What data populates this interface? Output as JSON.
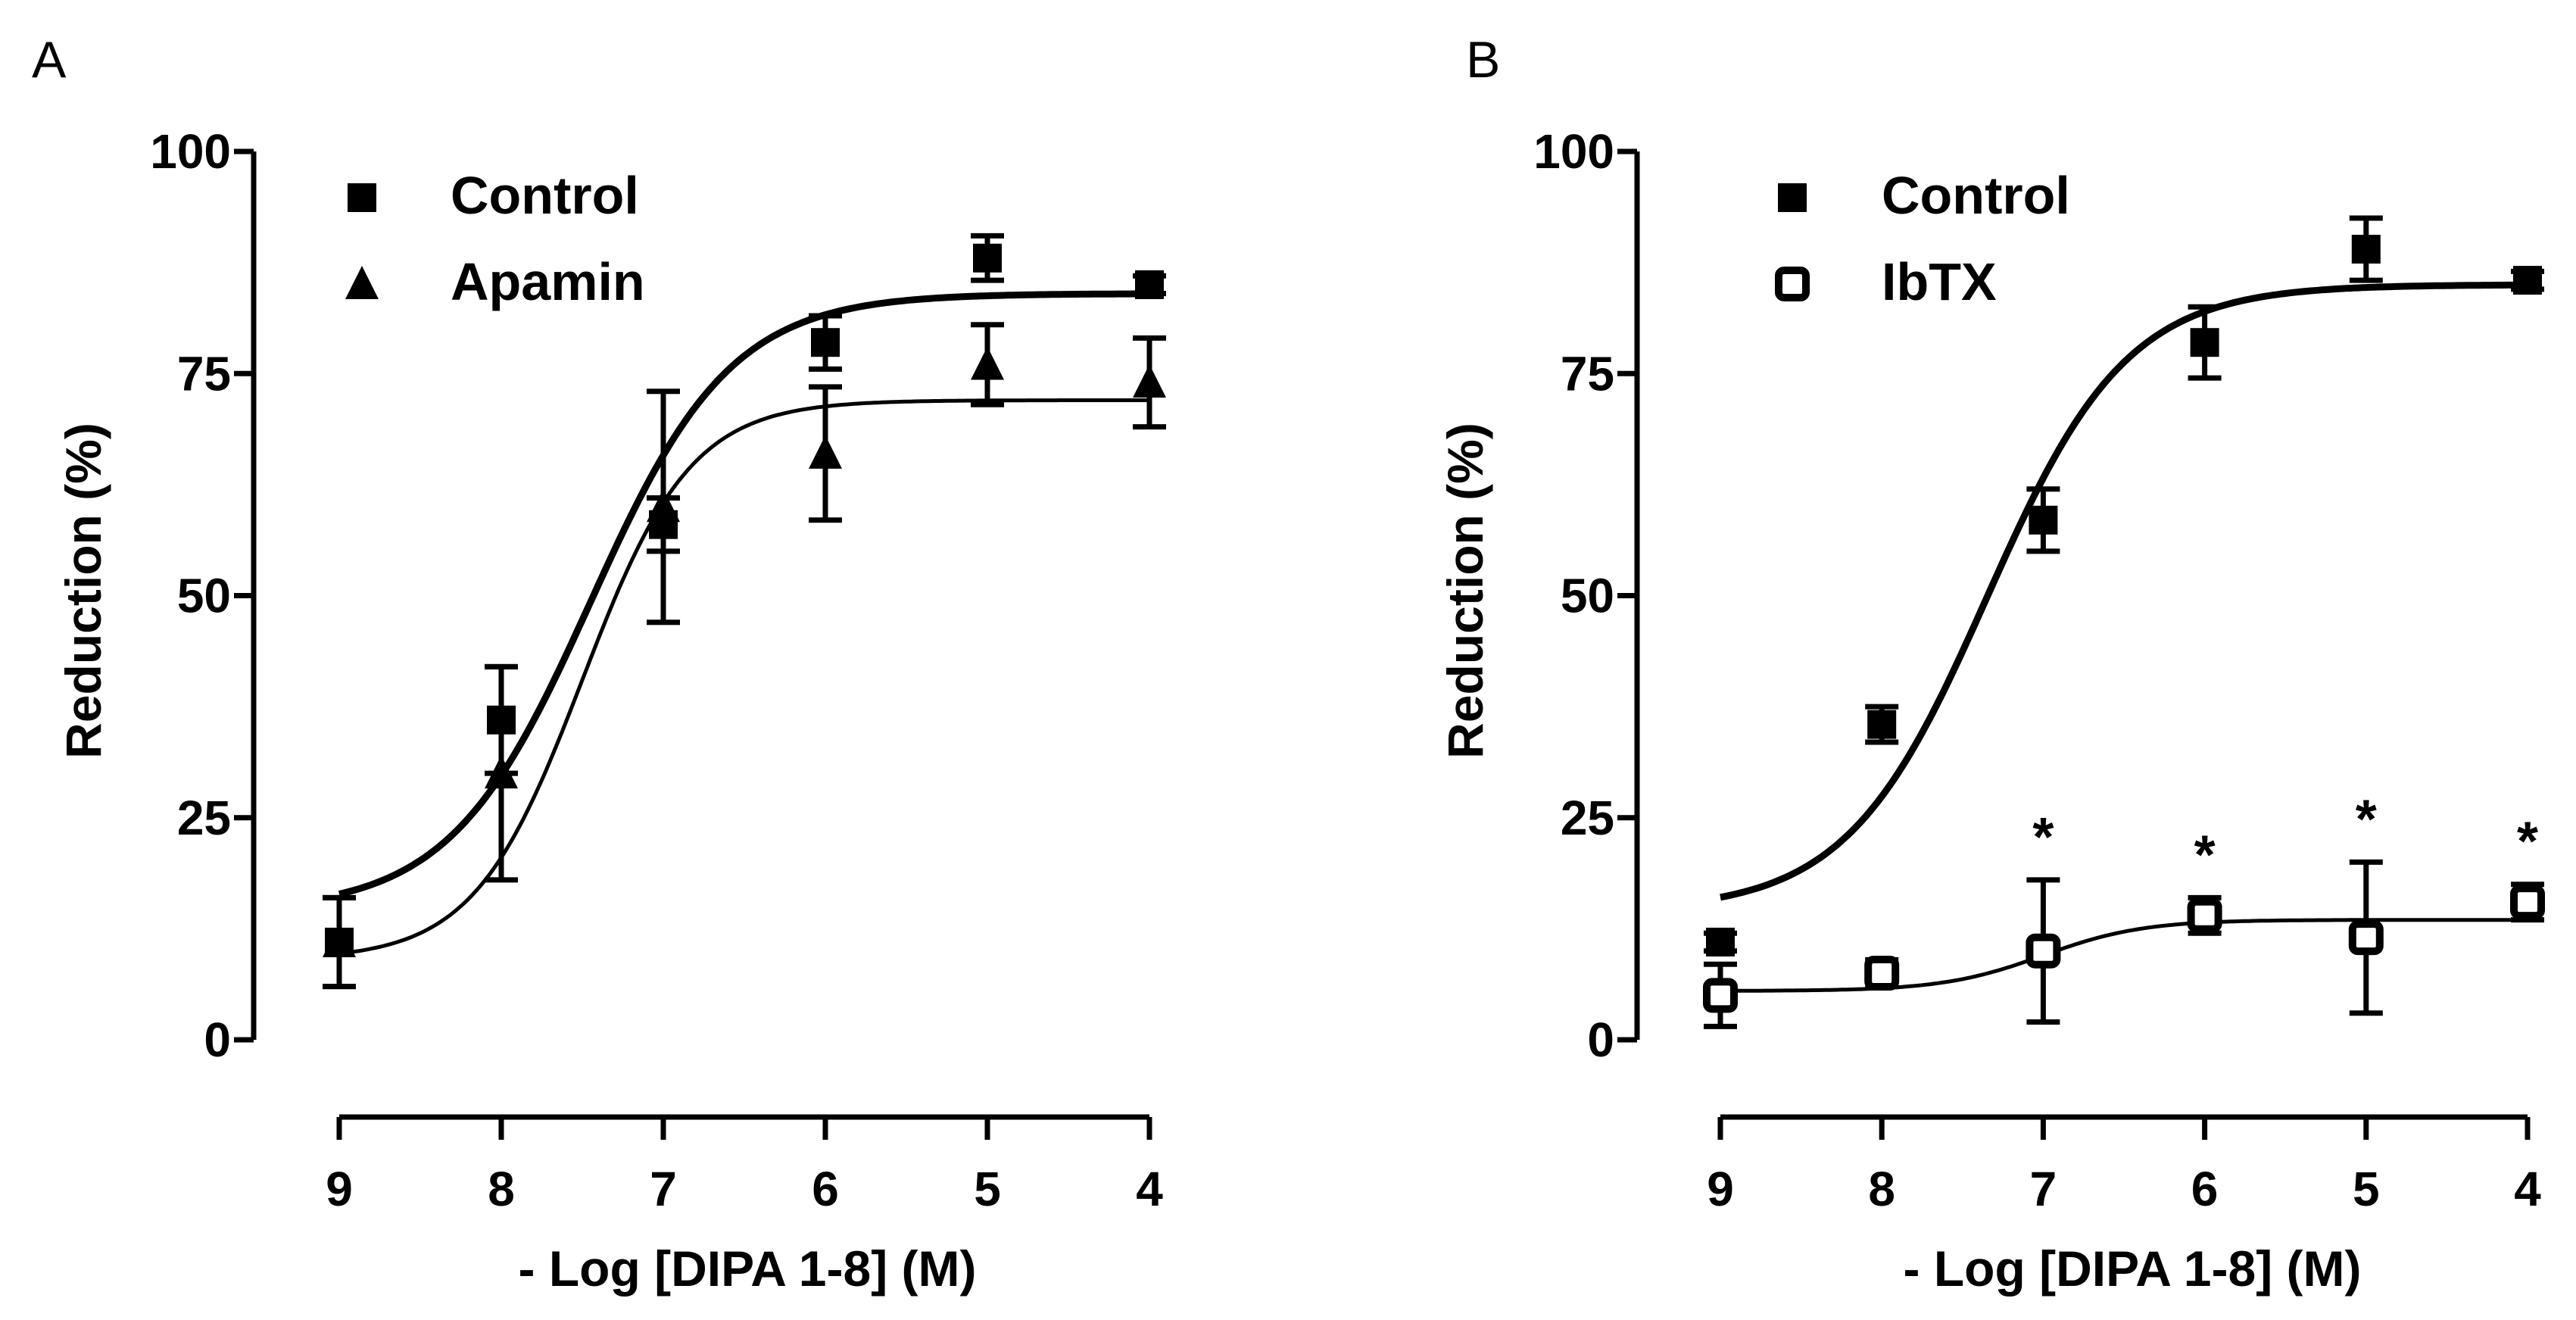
{
  "chart_data": [
    {
      "panel": "A",
      "type": "scatter",
      "xlabel": "- Log [DIPA 1-8] (M)",
      "ylabel": "Reduction (%)",
      "xlim": [
        9,
        4
      ],
      "ylim": [
        0,
        100
      ],
      "xticks": [
        9,
        8,
        7,
        6,
        5,
        4
      ],
      "yticks": [
        0,
        25,
        50,
        75,
        100
      ],
      "legend": [
        {
          "label": "Control",
          "marker": "filled-square"
        },
        {
          "label": "Apamin",
          "marker": "filled-triangle"
        }
      ],
      "series": [
        {
          "name": "Control",
          "marker": "filled-square",
          "points": [
            {
              "x": 9,
              "y": 11,
              "err": 5
            },
            {
              "x": 8,
              "y": 36,
              "err": 6
            },
            {
              "x": 7,
              "y": 58,
              "err": 3
            },
            {
              "x": 6,
              "y": 78.5,
              "err": 3
            },
            {
              "x": 5,
              "y": 88,
              "err": 2.5
            },
            {
              "x": 4,
              "y": 85,
              "err": 1
            }
          ],
          "fit": {
            "bottom": 14.5,
            "top": 84,
            "logEC50": -7.45,
            "hill": 1
          }
        },
        {
          "name": "Apamin",
          "marker": "filled-triangle",
          "points": [
            {
              "x": 9,
              "y": 11,
              "err": 5
            },
            {
              "x": 8,
              "y": 30,
              "err": 12
            },
            {
              "x": 7,
              "y": 60,
              "err": 13
            },
            {
              "x": 6,
              "y": 66,
              "err": 7.5
            },
            {
              "x": 5,
              "y": 76,
              "err": 4.5
            },
            {
              "x": 4,
              "y": 74,
              "err": 5
            }
          ],
          "fit": {
            "bottom": 9,
            "top": 72,
            "logEC50": -7.5,
            "hill": 1.3
          }
        }
      ]
    },
    {
      "panel": "B",
      "type": "scatter",
      "xlabel": "- Log [DIPA 1-8] (M)",
      "ylabel": "Reduction (%)",
      "xlim": [
        9,
        4
      ],
      "ylim": [
        0,
        100
      ],
      "xticks": [
        9,
        8,
        7,
        6,
        5,
        4
      ],
      "yticks": [
        0,
        25,
        50,
        75,
        100
      ],
      "legend": [
        {
          "label": "Control",
          "marker": "filled-square"
        },
        {
          "label": "IbTX",
          "marker": "open-square"
        }
      ],
      "annotations": [
        {
          "text": "*",
          "x": 7
        },
        {
          "text": "*",
          "x": 6
        },
        {
          "text": "*",
          "x": 5
        },
        {
          "text": "*",
          "x": 4
        }
      ],
      "series": [
        {
          "name": "Control",
          "marker": "filled-square",
          "points": [
            {
              "x": 9,
              "y": 11,
              "err": 1
            },
            {
              "x": 8,
              "y": 35.5,
              "err": 2
            },
            {
              "x": 7,
              "y": 58.5,
              "err": 3.5
            },
            {
              "x": 6,
              "y": 78.5,
              "err": 4
            },
            {
              "x": 5,
              "y": 89,
              "err": 3.5
            },
            {
              "x": 4,
              "y": 85.5,
              "err": 1
            }
          ],
          "fit": {
            "bottom": 14.5,
            "top": 85,
            "logEC50": -7.35,
            "hill": 1
          }
        },
        {
          "name": "IbTX",
          "marker": "open-square",
          "points": [
            {
              "x": 9,
              "y": 5,
              "err": 3.5
            },
            {
              "x": 8,
              "y": 7.5,
              "err": 1.5
            },
            {
              "x": 7,
              "y": 10,
              "err": 8
            },
            {
              "x": 6,
              "y": 14,
              "err": 2
            },
            {
              "x": 5,
              "y": 11.5,
              "err": 8.5
            },
            {
              "x": 4,
              "y": 15.5,
              "err": 2
            }
          ],
          "fit": {
            "bottom": 5.5,
            "top": 13.5,
            "logEC50": -7,
            "hill": 1.4
          }
        }
      ]
    }
  ]
}
